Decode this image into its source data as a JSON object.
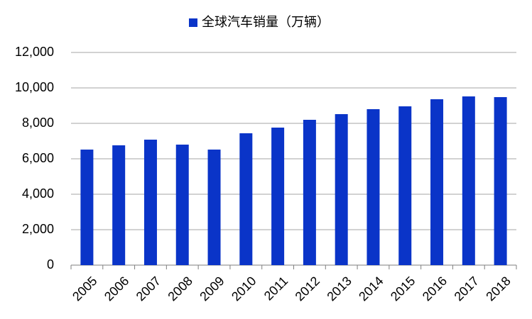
{
  "chart_data": {
    "type": "bar",
    "categories": [
      "2005",
      "2006",
      "2007",
      "2008",
      "2009",
      "2010",
      "2011",
      "2012",
      "2013",
      "2014",
      "2015",
      "2016",
      "2017",
      "2018"
    ],
    "series": [
      {
        "name": "全球汽车销量（万辆）",
        "color": "#0a34c8",
        "values": [
          6520,
          6760,
          7080,
          6800,
          6520,
          7440,
          7760,
          8200,
          8520,
          8800,
          8960,
          9360,
          9520,
          9480
        ]
      }
    ],
    "ylim": [
      0,
      12000
    ],
    "yticks": [
      0,
      {
        "value": 2000,
        "label": "2,000"
      },
      {
        "value": 4000,
        "label": "4,000"
      },
      {
        "value": 6000,
        "label": "6,000"
      },
      {
        "value": 8000,
        "label": "8,000"
      },
      {
        "value": 10000,
        "label": "10,000"
      },
      {
        "value": 12000,
        "label": "12,000"
      }
    ],
    "grid": true,
    "legend": "top"
  }
}
